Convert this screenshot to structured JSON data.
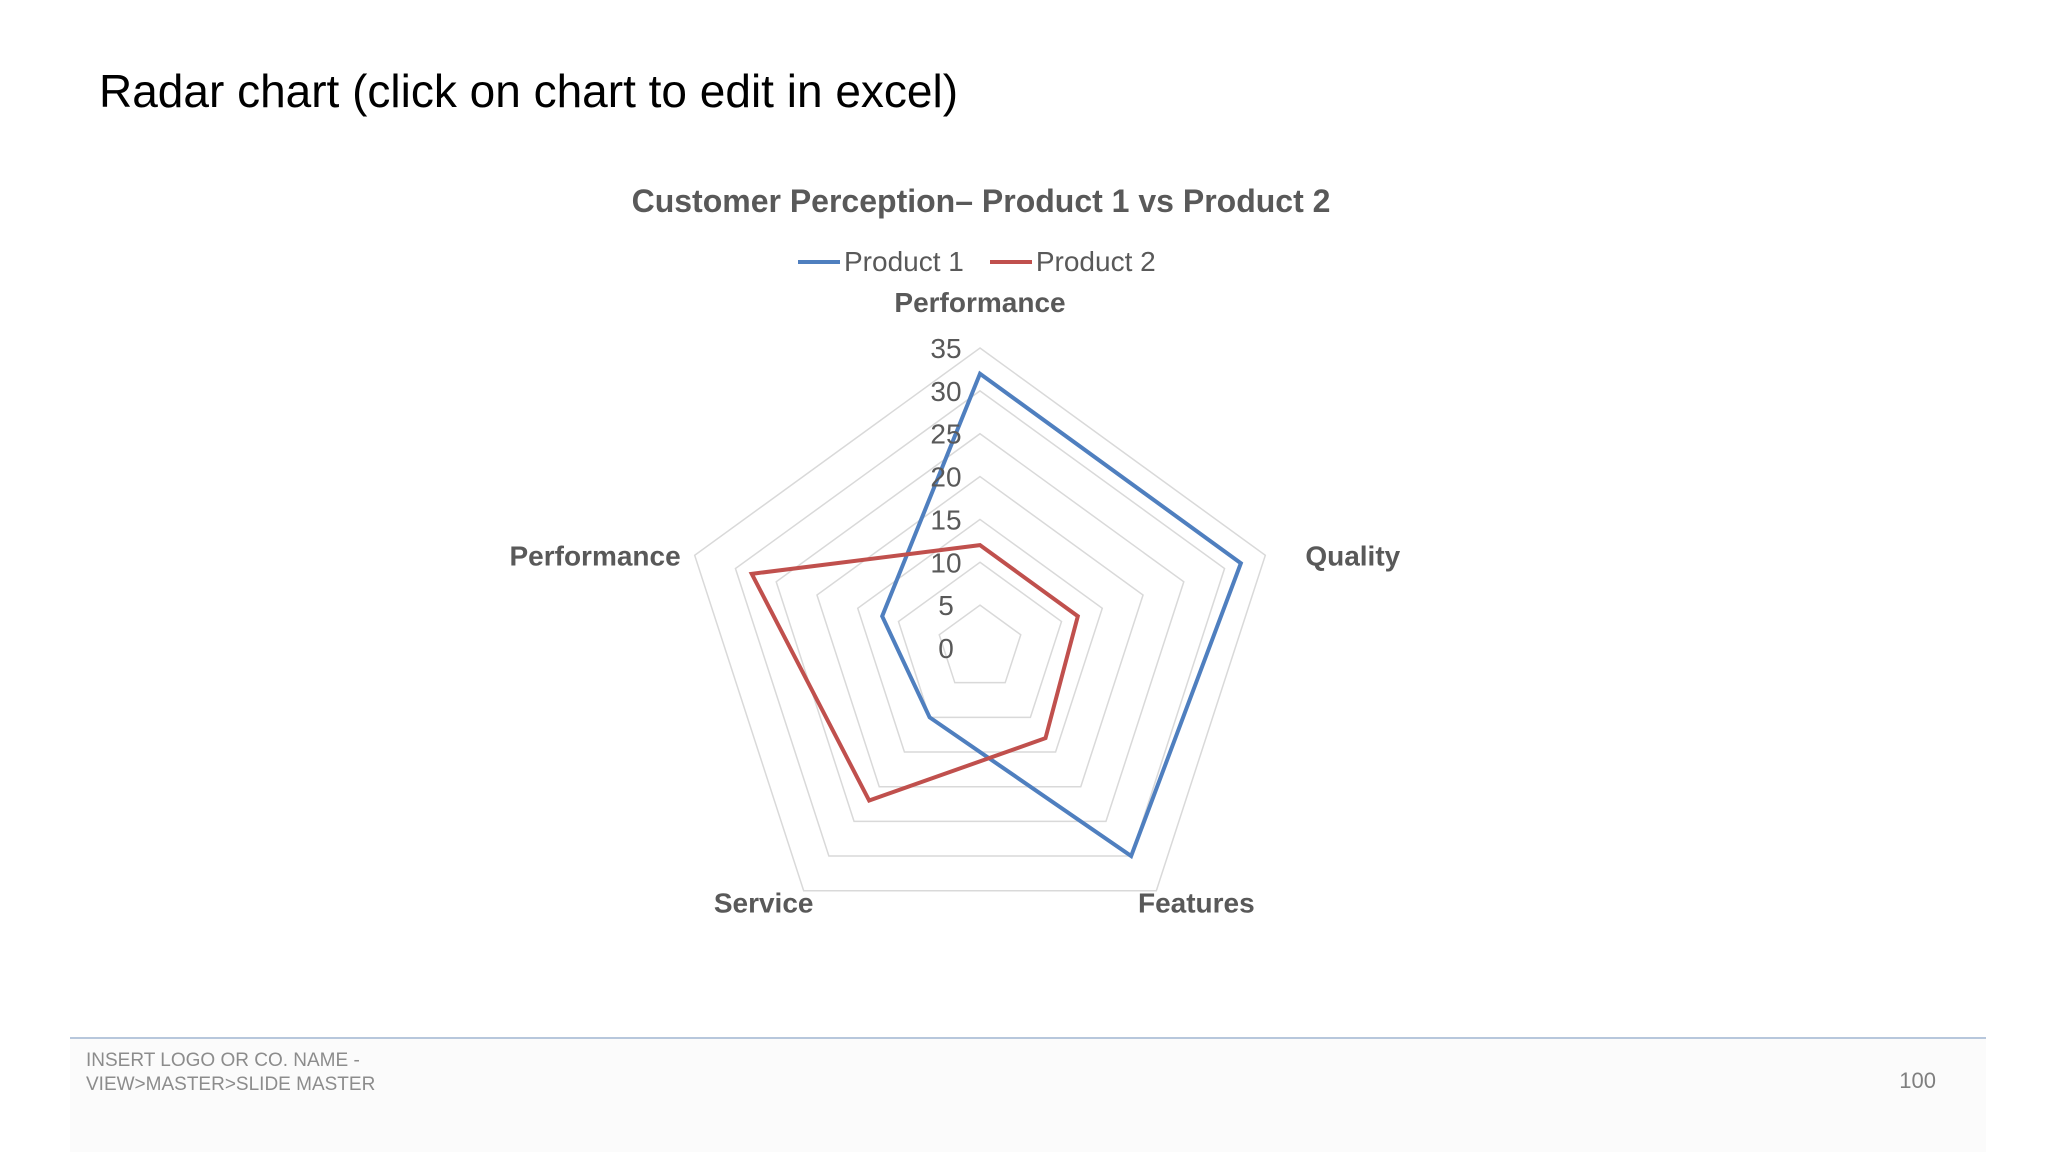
{
  "slide": {
    "title": "Radar chart (click on chart to edit in excel)"
  },
  "chart_data": {
    "type": "radar",
    "title": "Customer Perception– Product 1 vs Product 2",
    "categories": [
      "Performance",
      "Quality",
      "Features",
      "Service",
      "Performance"
    ],
    "series": [
      {
        "name": "Product 1",
        "color": "#4f7fbf",
        "values": [
          32,
          32,
          30,
          10,
          12
        ]
      },
      {
        "name": "Product 2",
        "color": "#c0504d",
        "values": [
          12,
          12,
          13,
          22,
          28
        ]
      }
    ],
    "rlim": [
      0,
      35
    ],
    "r_ticks": [
      "0",
      "5",
      "10",
      "15",
      "20",
      "25",
      "30",
      "35"
    ],
    "grid": true,
    "grid_color": "#d9d9d9",
    "legend_position": "top"
  },
  "footer": {
    "left_line1": "INSERT LOGO OR CO. NAME -",
    "left_line2": "VIEW>MASTER>SLIDE MASTER",
    "page_number": "100"
  }
}
